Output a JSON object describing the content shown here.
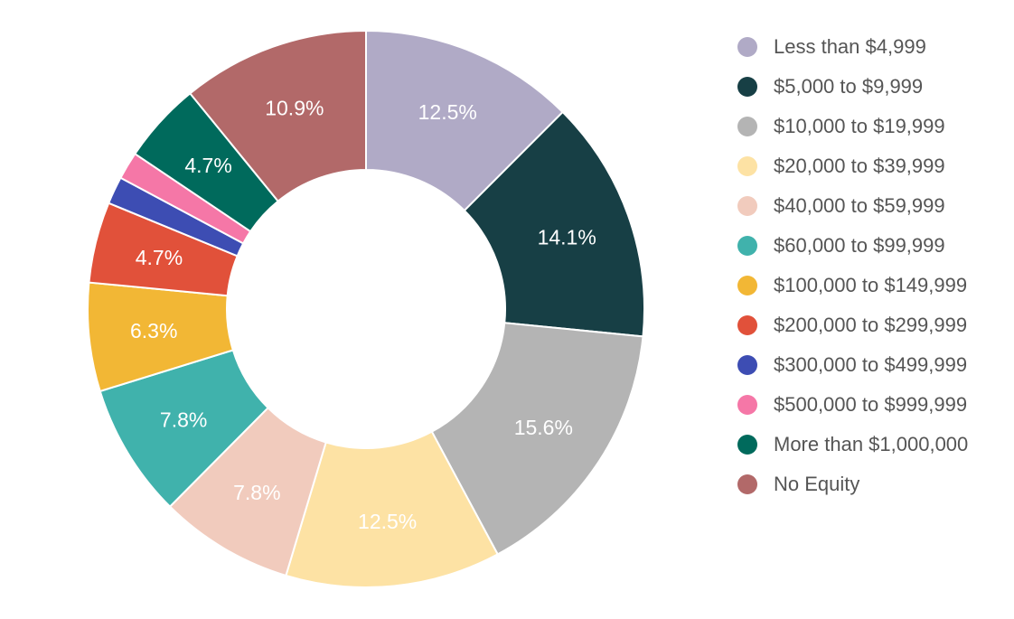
{
  "chart_data": {
    "type": "pie",
    "variant": "donut",
    "title": "",
    "legend_position": "right",
    "slices": [
      {
        "name": "Less than $4,999",
        "value": 12.5,
        "label": "12.5%",
        "color": "#b0aac6"
      },
      {
        "name": "$5,000 to $9,999",
        "value": 14.1,
        "label": "14.1%",
        "color": "#173f45"
      },
      {
        "name": "$10,000 to $19,999",
        "value": 15.6,
        "label": "15.6%",
        "color": "#b4b4b4"
      },
      {
        "name": "$20,000 to $39,999",
        "value": 12.5,
        "label": "12.5%",
        "color": "#fde2a4"
      },
      {
        "name": "$40,000 to $59,999",
        "value": 7.8,
        "label": "7.8%",
        "color": "#f1cbbd"
      },
      {
        "name": "$60,000 to $99,999",
        "value": 7.8,
        "label": "7.8%",
        "color": "#40b2ac"
      },
      {
        "name": "$100,000 to $149,999",
        "value": 6.3,
        "label": "6.3%",
        "color": "#f2b735"
      },
      {
        "name": "$200,000 to $299,999",
        "value": 4.7,
        "label": "4.7%",
        "color": "#e1513a"
      },
      {
        "name": "$300,000 to $499,999",
        "value": 1.6,
        "label": "",
        "color": "#3d4db3"
      },
      {
        "name": "$500,000 to $999,999",
        "value": 1.6,
        "label": "",
        "color": "#f577a7"
      },
      {
        "name": "More than $1,000,000",
        "value": 4.7,
        "label": "4.7%",
        "color": "#006a5c"
      },
      {
        "name": "No Equity",
        "value": 10.9,
        "label": "10.9%",
        "color": "#b26969"
      }
    ]
  }
}
